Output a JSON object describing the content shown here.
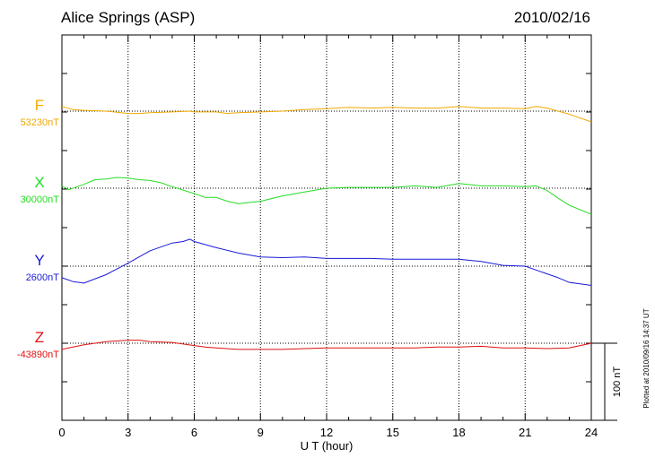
{
  "header": {
    "station": "Alice Springs (ASP)",
    "date": "2010/02/16"
  },
  "footnote": "Plotted at 2010/09/16 14:37 UT",
  "scale_bar": {
    "label": "100 nT",
    "value_nT": 100
  },
  "chart_data": {
    "type": "line",
    "title": "Alice Springs (ASP)",
    "date": "2010/02/16",
    "xlabel": "U T (hour)",
    "xlim": [
      0,
      24
    ],
    "xticks": [
      0,
      3,
      6,
      9,
      12,
      15,
      18,
      21,
      24
    ],
    "xtick_labels": [
      "0",
      "3",
      "6",
      "9",
      "12",
      "15",
      "18",
      "21",
      "24"
    ],
    "grid": true,
    "units": "nT",
    "series": [
      {
        "name": "F",
        "baseline_label": "53230nT",
        "baseline": 53230,
        "color": "#f0a800",
        "x": [
          0,
          0.5,
          1,
          2,
          3,
          3.5,
          4,
          5,
          5.8,
          6,
          6.5,
          7,
          7.5,
          8,
          9,
          10,
          11,
          12,
          13,
          14,
          15,
          16,
          17,
          18,
          19,
          20,
          21,
          21.5,
          22,
          23,
          24
        ],
        "y": [
          53236,
          53232,
          53231,
          53230,
          53227,
          53227,
          53228,
          53229,
          53230,
          53229,
          53229,
          53229,
          53227,
          53228,
          53229,
          53230,
          53232,
          53233,
          53235,
          53234,
          53235,
          53234,
          53234,
          53236,
          53234,
          53234,
          53233,
          53236,
          53234,
          53226,
          53216
        ]
      },
      {
        "name": "X",
        "baseline_label": "30000nT",
        "baseline": 30000,
        "color": "#22dd22",
        "x": [
          0,
          0.3,
          0.7,
          1,
          1.5,
          2,
          2.5,
          3,
          3.5,
          4,
          4.5,
          5,
          6,
          6.5,
          7,
          7.5,
          8,
          9,
          10,
          11,
          12,
          13,
          14,
          15,
          16,
          17,
          18,
          19,
          20,
          21,
          21.5,
          22,
          22.5,
          23,
          24
        ],
        "y": [
          30003,
          29998,
          30002,
          30005,
          30011,
          30012,
          30014,
          30013,
          30011,
          30010,
          30007,
          30002,
          29993,
          29988,
          29988,
          29983,
          29980,
          29983,
          29990,
          29995,
          30000,
          30001,
          30001,
          30001,
          30003,
          30001,
          30006,
          30003,
          30003,
          30002,
          30003,
          29997,
          29987,
          29978,
          29966
        ]
      },
      {
        "name": "Y",
        "baseline_label": "2600nT",
        "baseline": 2600,
        "color": "#1a1ad8",
        "x": [
          0,
          0.5,
          1,
          2,
          3,
          4,
          5,
          5.5,
          5.8,
          6,
          7,
          8,
          9,
          10,
          11,
          12,
          13,
          14,
          15,
          16,
          17,
          18,
          19,
          20,
          21,
          21.5,
          22,
          22.5,
          23,
          23.5,
          24
        ],
        "y": [
          2585,
          2580,
          2578,
          2589,
          2604,
          2620,
          2630,
          2632,
          2635,
          2632,
          2624,
          2617,
          2612,
          2611,
          2612,
          2610,
          2610,
          2610,
          2609,
          2609,
          2609,
          2609,
          2606,
          2601,
          2600,
          2595,
          2590,
          2585,
          2579,
          2577,
          2575
        ]
      },
      {
        "name": "Z",
        "baseline_label": "-43890nT",
        "baseline": -43890,
        "color": "#dd1111",
        "x": [
          0,
          0.5,
          1,
          1.5,
          2,
          3,
          3.5,
          4,
          5,
          6,
          6.5,
          7,
          8,
          9,
          10,
          11,
          12,
          13,
          14,
          15,
          16,
          17,
          18,
          19,
          20,
          21,
          22,
          23,
          24
        ],
        "y": [
          -43898,
          -43895,
          -43892,
          -43890,
          -43888,
          -43886,
          -43886,
          -43888,
          -43889,
          -43893,
          -43895,
          -43896,
          -43898,
          -43898,
          -43898,
          -43897,
          -43896,
          -43896,
          -43896,
          -43896,
          -43896,
          -43895,
          -43895,
          -43894,
          -43896,
          -43896,
          -43897,
          -43896,
          -43890
        ]
      }
    ]
  }
}
